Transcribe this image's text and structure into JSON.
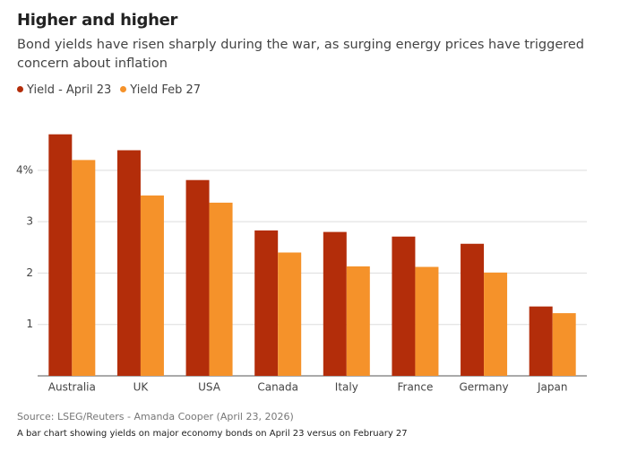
{
  "chart_data": {
    "type": "bar",
    "title": "Higher and higher",
    "subtitle": "Bond yields have risen sharply during the war, as surging energy prices have triggered concern about inflation",
    "categories": [
      "Australia",
      "UK",
      "USA",
      "Canada",
      "Italy",
      "France",
      "Germany",
      "Japan"
    ],
    "series": [
      {
        "name": "Yield - April 23",
        "color": "#b32d0a",
        "values": [
          4.7,
          4.39,
          3.81,
          2.83,
          2.8,
          2.71,
          2.57,
          1.35
        ]
      },
      {
        "name": "Yield Feb 27",
        "color": "#f5922a",
        "values": [
          4.2,
          3.51,
          3.37,
          2.4,
          2.13,
          2.12,
          2.01,
          1.22
        ]
      }
    ],
    "ylim": [
      0,
      4.8
    ],
    "yticks": [
      1,
      2,
      3,
      {
        "value": 4,
        "label": "4%"
      }
    ],
    "grid": true,
    "source": "Source: LSEG/Reuters - Amanda Cooper (April 23, 2026)",
    "note": "A bar chart showing yields on major economy bonds on April 23 versus on February 27"
  }
}
